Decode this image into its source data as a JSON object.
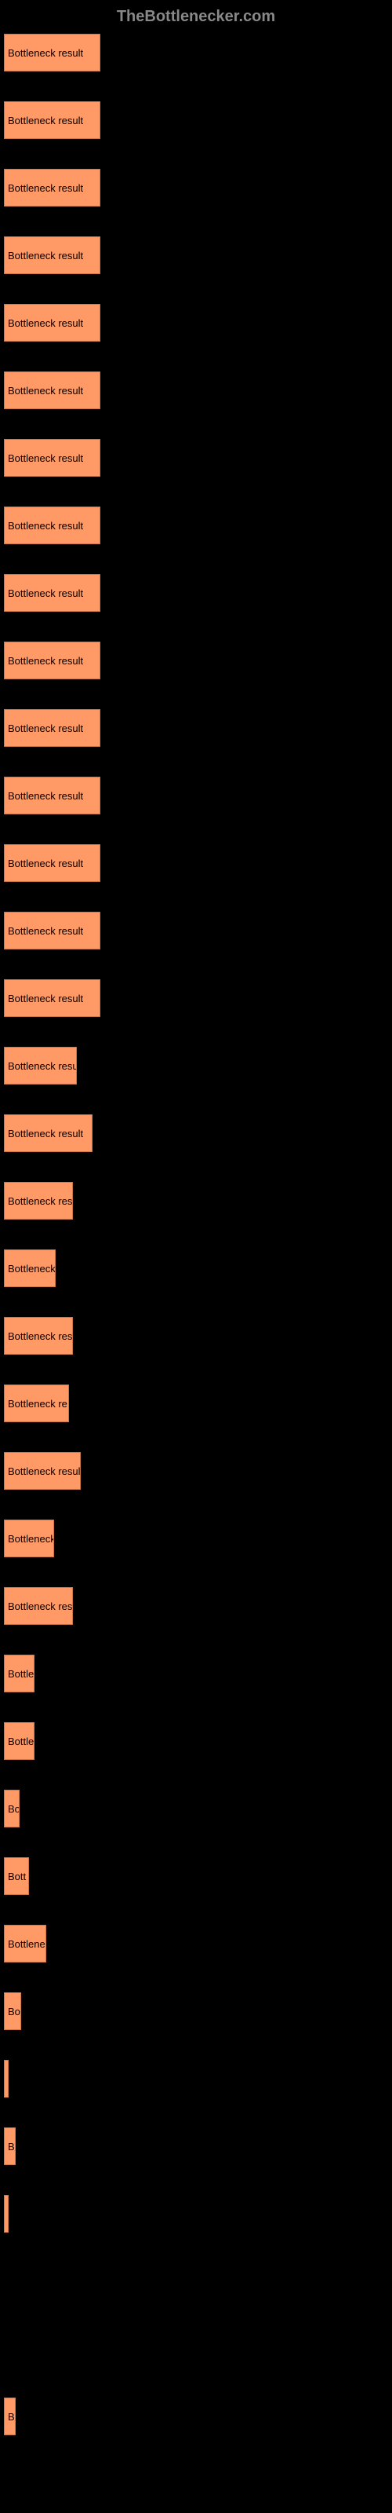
{
  "header": {
    "title": "TheBottlenecker.com"
  },
  "chart": {
    "type": "bar",
    "bar_color": "#ff9966",
    "border_color": "#cc7744",
    "background_color": "#000000",
    "label_color": "#000000",
    "label_fontsize": 13,
    "max_width": 490,
    "bars": [
      {
        "label": "Bottleneck result",
        "width_percent": 25.0
      },
      {
        "label": "Bottleneck result",
        "width_percent": 25.0
      },
      {
        "label": "Bottleneck result",
        "width_percent": 25.0
      },
      {
        "label": "Bottleneck result",
        "width_percent": 25.0
      },
      {
        "label": "Bottleneck result",
        "width_percent": 25.0
      },
      {
        "label": "Bottleneck result",
        "width_percent": 25.0
      },
      {
        "label": "Bottleneck result",
        "width_percent": 25.0
      },
      {
        "label": "Bottleneck result",
        "width_percent": 25.0
      },
      {
        "label": "Bottleneck result",
        "width_percent": 25.0
      },
      {
        "label": "Bottleneck result",
        "width_percent": 25.0
      },
      {
        "label": "Bottleneck result",
        "width_percent": 25.0
      },
      {
        "label": "Bottleneck result",
        "width_percent": 25.0
      },
      {
        "label": "Bottleneck result",
        "width_percent": 25.0
      },
      {
        "label": "Bottleneck result",
        "width_percent": 25.0
      },
      {
        "label": "Bottleneck result",
        "width_percent": 25.0
      },
      {
        "label": "Bottleneck resu",
        "width_percent": 19.0
      },
      {
        "label": "Bottleneck result",
        "width_percent": 23.0
      },
      {
        "label": "Bottleneck res",
        "width_percent": 18.0
      },
      {
        "label": "Bottleneck",
        "width_percent": 13.5
      },
      {
        "label": "Bottleneck res",
        "width_percent": 18.0
      },
      {
        "label": "Bottleneck re",
        "width_percent": 17.0
      },
      {
        "label": "Bottleneck resul",
        "width_percent": 20.0
      },
      {
        "label": "Bottleneck",
        "width_percent": 13.0
      },
      {
        "label": "Bottleneck res",
        "width_percent": 18.0
      },
      {
        "label": "Bottle",
        "width_percent": 8.0
      },
      {
        "label": "Bottle",
        "width_percent": 8.0
      },
      {
        "label": "Bo",
        "width_percent": 4.0
      },
      {
        "label": "Bott",
        "width_percent": 6.5
      },
      {
        "label": "Bottlene",
        "width_percent": 11.0
      },
      {
        "label": "Bo",
        "width_percent": 4.5
      },
      {
        "label": "",
        "width_percent": 1.0
      },
      {
        "label": "B",
        "width_percent": 3.0
      },
      {
        "label": "",
        "width_percent": 0.5
      },
      {
        "label": "",
        "width_percent": 0.0
      },
      {
        "label": "",
        "width_percent": 0.0
      },
      {
        "label": "B",
        "width_percent": 3.0
      }
    ]
  }
}
